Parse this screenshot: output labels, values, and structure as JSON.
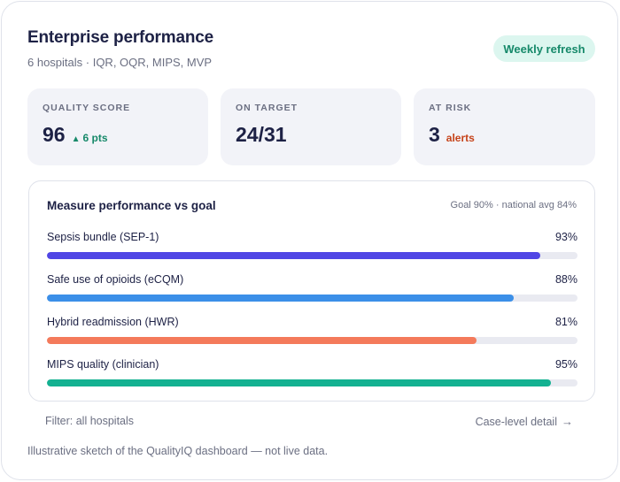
{
  "header": {
    "title": "Enterprise performance",
    "subtitle": "6 hospitals · IQR, OQR, MIPS, MVP",
    "badge": "Weekly refresh"
  },
  "stats": {
    "quality": {
      "label": "QUALITY SCORE",
      "value": "96",
      "delta": "6 pts",
      "delta_icon": "up-triangle-icon"
    },
    "on_target": {
      "label": "ON TARGET",
      "value": "24/31"
    },
    "at_risk": {
      "label": "AT RISK",
      "value": "3",
      "suffix": "alerts"
    }
  },
  "panel": {
    "title": "Measure performance vs goal",
    "note": "Goal 90% · national avg 84%"
  },
  "measures": [
    {
      "name": "Sepsis bundle (SEP-1)",
      "pct_label": "93%",
      "value": 93,
      "color": "#5046e5"
    },
    {
      "name": "Safe use of opioids (eCQM)",
      "pct_label": "88%",
      "value": 88,
      "color": "#3b8fe8"
    },
    {
      "name": "Hybrid readmission (HWR)",
      "pct_label": "81%",
      "value": 81,
      "color": "#f47a5b"
    },
    {
      "name": "MIPS quality (clinician)",
      "pct_label": "95%",
      "value": 95,
      "color": "#13b191"
    }
  ],
  "footer": {
    "filter": "Filter: all hospitals",
    "detail_link": "Case-level detail",
    "detail_icon": "arrow-right-icon",
    "disclaimer": "Illustrative sketch of the QualityIQ dashboard — not live data."
  }
}
